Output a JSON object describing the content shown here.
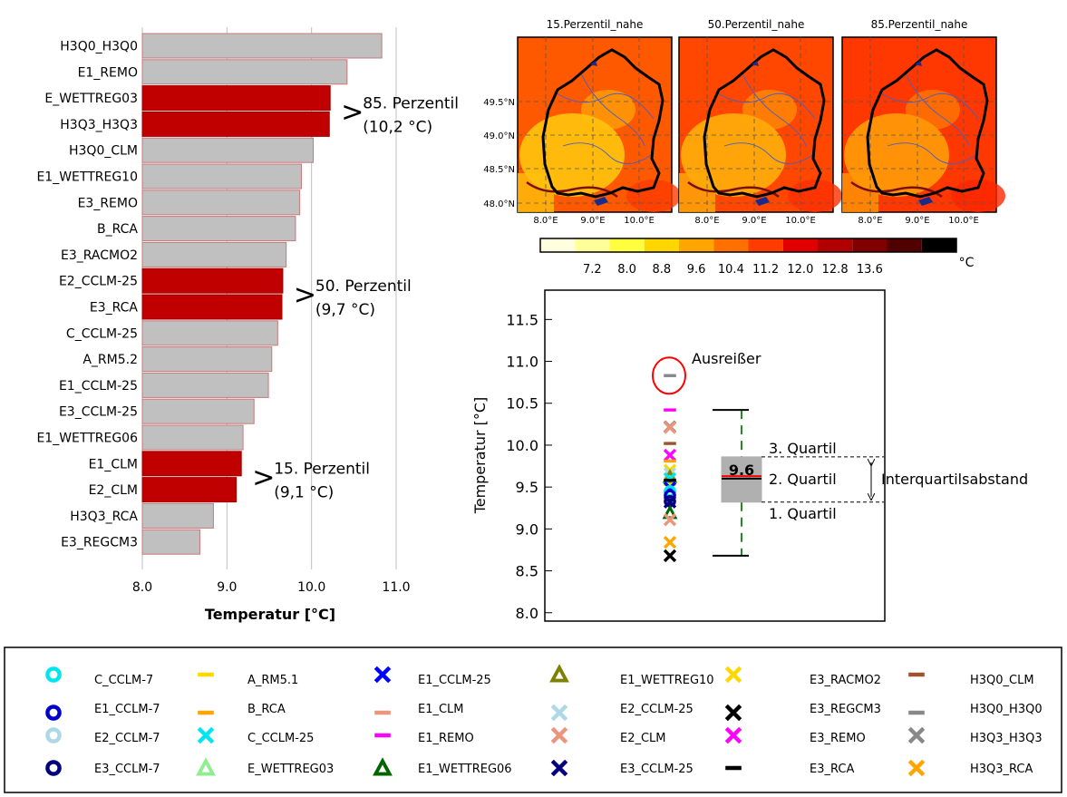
{
  "colors": {
    "bar_default": "#c0c0c0",
    "bar_default_edge": "#c87878",
    "bar_highlight": "#c00000",
    "gridline": "#bfbfbf"
  },
  "chart_data": [
    {
      "type": "bar",
      "orientation": "horizontal",
      "xlabel": "Temperatur [°C]",
      "xlim": [
        8.0,
        11.0
      ],
      "xticks": [
        "8.0",
        "9.0",
        "10.0",
        "11.0"
      ],
      "grid": "vertical",
      "categories": [
        "H3Q0_H3Q0",
        "E1_REMO",
        "E_WETTREG03",
        "H3Q3_H3Q3",
        "H3Q0_CLM",
        "E1_WETTREG10",
        "E3_REMO",
        "B_RCA",
        "E3_RACMO2",
        "E2_CCLM-25",
        "E3_RCA",
        "C_CCLM-25",
        "A_RM5.2",
        "E1_CCLM-25",
        "E3_CCLM-25",
        "E1_WETTREG06",
        "E1_CLM",
        "E2_CLM",
        "H3Q3_RCA",
        "E3_REGCM3"
      ],
      "values": [
        10.83,
        10.42,
        10.22,
        10.21,
        10.02,
        9.88,
        9.86,
        9.81,
        9.7,
        9.66,
        9.65,
        9.6,
        9.53,
        9.49,
        9.32,
        9.19,
        9.17,
        9.11,
        8.84,
        8.68
      ],
      "highlighted": [
        false,
        false,
        true,
        true,
        false,
        false,
        false,
        false,
        false,
        true,
        true,
        false,
        false,
        false,
        false,
        false,
        true,
        true,
        false,
        false
      ],
      "annotations": [
        {
          "line1": "85. Perzentil",
          "line2": "(10,2 °C)",
          "at_index": 2
        },
        {
          "line1": "50. Perzentil",
          "line2": "(9,7 °C)",
          "at_index": 9
        },
        {
          "line1": "15. Perzentil",
          "line2": "(9,1 °C)",
          "at_index": 16
        }
      ]
    },
    {
      "type": "heatmap",
      "panels": [
        {
          "title": "15.Perzentil_nahe",
          "level": 0.35
        },
        {
          "title": "50.Perzentil_nahe",
          "level": 0.55
        },
        {
          "title": "85.Perzentil_nahe",
          "level": 0.72
        }
      ],
      "lat_ticks": [
        "49.5°N",
        "49.0°N",
        "48.5°N",
        "48.0°N"
      ],
      "lon_ticks": [
        "8.0°E",
        "9.0°E",
        "10.0°E"
      ],
      "colorbar": {
        "ticks": [
          "7.2",
          "8.0",
          "8.8",
          "9.6",
          "10.4",
          "11.2",
          "12.0",
          "12.8",
          "13.6"
        ],
        "unit": "°C",
        "colors": [
          "#ffffe0",
          "#ffff9a",
          "#ffff40",
          "#ffd700",
          "#ffa500",
          "#ff7000",
          "#ff3c00",
          "#e00000",
          "#b00000",
          "#800000",
          "#500000",
          "#000000"
        ]
      }
    },
    {
      "type": "scatter",
      "subtype": "box",
      "ylabel": "Temperatur [°C]",
      "ylim": [
        7.9,
        11.85
      ],
      "yticks": [
        "8.0",
        "8.5",
        "9.0",
        "9.5",
        "10.0",
        "10.5",
        "11.0",
        "11.5"
      ],
      "box": {
        "q1": 9.32,
        "median": 9.6,
        "q3": 9.86,
        "mean": 9.63,
        "whisker_low": 8.68,
        "whisker_high": 10.42,
        "median_label": "9.6"
      },
      "points": [
        {
          "y": 10.83,
          "marker": "dash",
          "color": "#888888"
        },
        {
          "y": 10.42,
          "marker": "dash",
          "color": "#ff00ff"
        },
        {
          "y": 10.22,
          "marker": "cross",
          "color": "#888888"
        },
        {
          "y": 10.21,
          "marker": "cross",
          "color": "#e9967a"
        },
        {
          "y": 10.02,
          "marker": "dash",
          "color": "#a0522d"
        },
        {
          "y": 9.88,
          "marker": "cross",
          "color": "#ff00ff"
        },
        {
          "y": 9.81,
          "marker": "dash",
          "color": "#ffa500"
        },
        {
          "y": 9.7,
          "marker": "cross",
          "color": "#ffd700"
        },
        {
          "y": 9.66,
          "marker": "cross",
          "color": "#add8e6"
        },
        {
          "y": 9.62,
          "marker": "triangle",
          "color": "#808000"
        },
        {
          "y": 9.6,
          "marker": "cross",
          "color": "#00e5ee"
        },
        {
          "y": 9.58,
          "marker": "dash",
          "color": "#000000"
        },
        {
          "y": 9.53,
          "marker": "dash",
          "color": "#ffd700"
        },
        {
          "y": 9.49,
          "marker": "cross",
          "color": "#0000ff"
        },
        {
          "y": 9.45,
          "marker": "ring",
          "color": "#00e5ee"
        },
        {
          "y": 9.4,
          "marker": "ring",
          "color": "#0000cd"
        },
        {
          "y": 9.33,
          "marker": "ring",
          "color": "#000080"
        },
        {
          "y": 9.32,
          "marker": "cross",
          "color": "#000080"
        },
        {
          "y": 9.19,
          "marker": "triangle",
          "color": "#006400"
        },
        {
          "y": 9.11,
          "marker": "cross",
          "color": "#e9967a"
        },
        {
          "y": 8.84,
          "marker": "cross",
          "color": "#ffa500"
        },
        {
          "y": 8.68,
          "marker": "cross",
          "color": "#000000"
        }
      ],
      "annotations": {
        "outlier": "Ausreißer",
        "q3": "3. Quartil",
        "q2": "2. Quartil",
        "q1": "1. Quartil",
        "iqr": "Interquartilsabstand"
      }
    }
  ],
  "legend": {
    "entries": [
      {
        "name": "C_CCLM-7",
        "marker": "ring",
        "color": "#00e5ee"
      },
      {
        "name": "E1_CCLM-7",
        "marker": "ring",
        "color": "#0000cd"
      },
      {
        "name": "E2_CCLM-7",
        "marker": "ring",
        "color": "#add8e6"
      },
      {
        "name": "E3_CCLM-7",
        "marker": "ring",
        "color": "#000080"
      },
      {
        "name": "A_RM5.1",
        "marker": "dash",
        "color": "#ffd700"
      },
      {
        "name": "B_RCA",
        "marker": "dash",
        "color": "#ffa500"
      },
      {
        "name": "C_CCLM-25",
        "marker": "cross",
        "color": "#00e5ee"
      },
      {
        "name": "E_WETTREG03",
        "marker": "triangle",
        "color": "#90ee90"
      },
      {
        "name": "E1_CCLM-25",
        "marker": "cross",
        "color": "#0000ff"
      },
      {
        "name": "E1_CLM",
        "marker": "dash",
        "color": "#e9967a"
      },
      {
        "name": "E1_REMO",
        "marker": "dash",
        "color": "#ff00ff"
      },
      {
        "name": "E1_WETTREG06",
        "marker": "triangle",
        "color": "#006400"
      },
      {
        "name": "E1_WETTREG10",
        "marker": "triangle",
        "color": "#808000"
      },
      {
        "name": "E2_CCLM-25",
        "marker": "cross",
        "color": "#add8e6"
      },
      {
        "name": "E2_CLM",
        "marker": "cross",
        "color": "#e9967a"
      },
      {
        "name": "E3_CCLM-25",
        "marker": "cross",
        "color": "#000080"
      },
      {
        "name": "E3_RACMO2",
        "marker": "cross",
        "color": "#ffd700"
      },
      {
        "name": "E3_REGCM3",
        "marker": "cross",
        "color": "#000000"
      },
      {
        "name": "E3_REMO",
        "marker": "cross",
        "color": "#ff00ff"
      },
      {
        "name": "E3_RCA",
        "marker": "dash",
        "color": "#000000"
      },
      {
        "name": "H3Q0_CLM",
        "marker": "dash",
        "color": "#a0522d"
      },
      {
        "name": "H3Q0_H3Q0",
        "marker": "dash",
        "color": "#888888"
      },
      {
        "name": "H3Q3_H3Q3",
        "marker": "cross",
        "color": "#888888"
      },
      {
        "name": "H3Q3_RCA",
        "marker": "cross",
        "color": "#ffa500"
      }
    ]
  }
}
